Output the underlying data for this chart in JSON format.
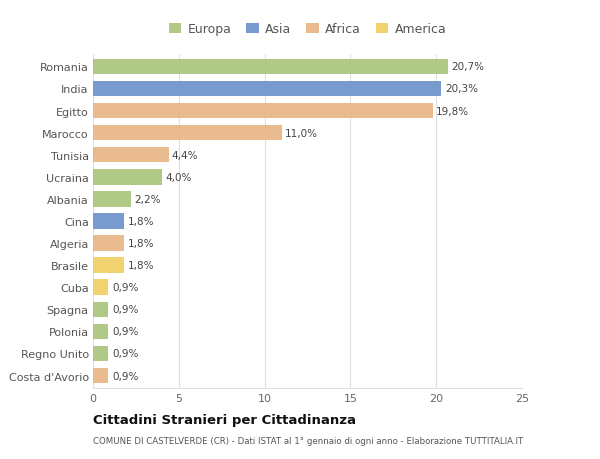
{
  "countries": [
    "Romania",
    "India",
    "Egitto",
    "Marocco",
    "Tunisia",
    "Ucraina",
    "Albania",
    "Cina",
    "Algeria",
    "Brasile",
    "Cuba",
    "Spagna",
    "Polonia",
    "Regno Unito",
    "Costa d'Avorio"
  ],
  "values": [
    20.7,
    20.3,
    19.8,
    11.0,
    4.4,
    4.0,
    2.2,
    1.8,
    1.8,
    1.8,
    0.9,
    0.9,
    0.9,
    0.9,
    0.9
  ],
  "labels": [
    "20,7%",
    "20,3%",
    "19,8%",
    "11,0%",
    "4,4%",
    "4,0%",
    "2,2%",
    "1,8%",
    "1,8%",
    "1,8%",
    "0,9%",
    "0,9%",
    "0,9%",
    "0,9%",
    "0,9%"
  ],
  "continents": [
    "Europa",
    "Asia",
    "Africa",
    "Africa",
    "Africa",
    "Europa",
    "Europa",
    "Asia",
    "Africa",
    "America",
    "America",
    "Europa",
    "Europa",
    "Europa",
    "Africa"
  ],
  "colors": {
    "Europa": "#a8c47a",
    "Asia": "#6a8fc8",
    "Africa": "#e8b482",
    "America": "#f0d060"
  },
  "title": "Cittadini Stranieri per Cittadinanza",
  "subtitle": "COMUNE DI CASTELVERDE (CR) - Dati ISTAT al 1° gennaio di ogni anno - Elaborazione TUTTITALIA.IT",
  "xlim": [
    0,
    25
  ],
  "xticks": [
    0,
    5,
    10,
    15,
    20,
    25
  ],
  "bg_color": "#ffffff",
  "plot_bg_color": "#ffffff",
  "grid_color": "#e0e0e0",
  "legend_order": [
    "Europa",
    "Asia",
    "Africa",
    "America"
  ]
}
